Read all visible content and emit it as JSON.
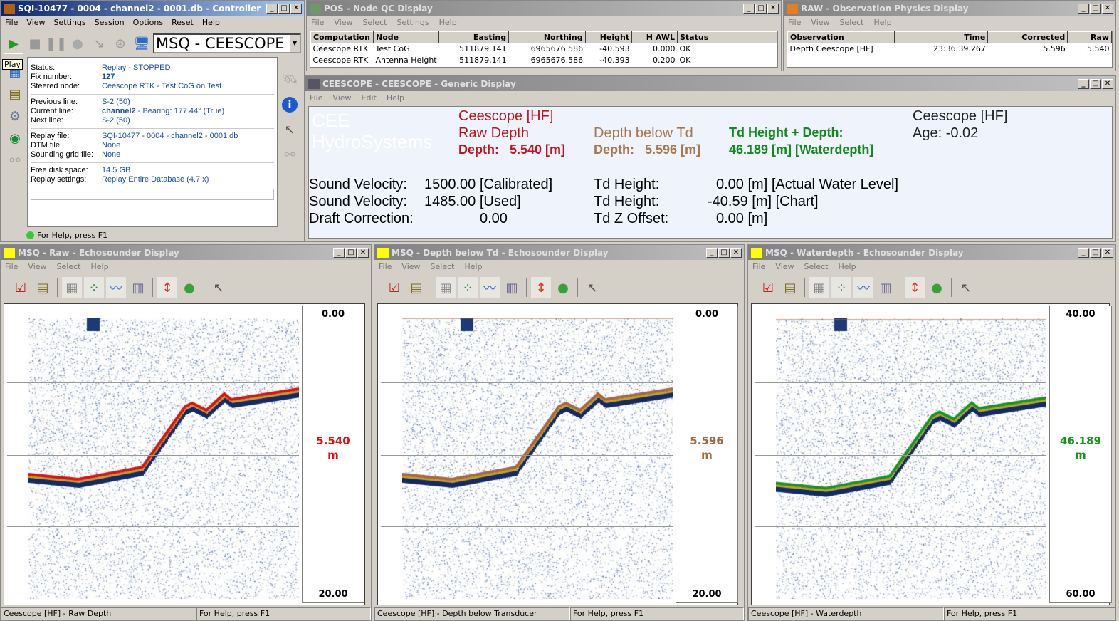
{
  "controller": {
    "title": "SQI-10477 - 0004 - channel2 - 0001.db - Controller",
    "menu": [
      "File",
      "View",
      "Settings",
      "Session",
      "Options",
      "Reset",
      "Help"
    ],
    "profile_select": "MSQ - CEESCOPE",
    "tooltip": "Play",
    "info": [
      [
        {
          "label": "Status:",
          "value": "Replay - STOPPED"
        },
        {
          "label": "Fix number:",
          "value": "127",
          "bold": true
        },
        {
          "label": "Steered node:",
          "value": "Ceescope RTK - Test CoG on Test"
        }
      ],
      [
        {
          "label": "Previous line:",
          "value": "S-2 (50)"
        },
        {
          "label": "Current line:",
          "value_bold": "channel2",
          "value": " - Bearing: 177.44° (True)"
        },
        {
          "label": "Next line:",
          "value": "S-2 (50)"
        }
      ],
      [
        {
          "label": "Replay file:",
          "value": "SQI-10477 - 0004 - channel2 - 0001.db"
        },
        {
          "label": "DTM file:",
          "value": "None"
        },
        {
          "label": "Sounding grid file:",
          "value": "None"
        }
      ],
      [
        {
          "label": "Free disk space:",
          "value": "14.5 GB"
        },
        {
          "label": "Replay settings:",
          "value": "Replay Entire Database (4.7 x)"
        }
      ]
    ],
    "status": "For Help, press F1"
  },
  "pos": {
    "title": "POS - Node QC Display",
    "menu": [
      "File",
      "View",
      "Select",
      "Settings",
      "Help"
    ],
    "columns": [
      "Computation",
      "Node",
      "Easting",
      "Northing",
      "Height",
      "H AWL",
      "Status"
    ],
    "rows": [
      [
        "Ceescope RTK",
        "Test CoG",
        "511879.141",
        "6965676.586",
        "-40.593",
        "0.000",
        "OK"
      ],
      [
        "Ceescope RTK",
        "Antenna Height",
        "511879.141",
        "6965676.586",
        "-40.393",
        "0.200",
        "OK"
      ]
    ]
  },
  "raw_obs": {
    "title": "RAW - Observation Physics Display",
    "menu": [
      "File",
      "View",
      "Select",
      "Help"
    ],
    "columns": [
      "Observation",
      "Time",
      "Corrected",
      "Raw"
    ],
    "rows": [
      [
        "Depth Ceescope [HF]",
        "23:36:39.267",
        "5.596",
        "5.540"
      ]
    ]
  },
  "generic": {
    "title": "CEESCOPE - CEESCOPE  - Generic Display",
    "menu": [
      "File",
      "View",
      "Edit",
      "Help"
    ],
    "logo": "CEE HydroSystems",
    "col1": [
      "Ceescope [HF]",
      "Raw Depth",
      "Depth:   5.540 [m]"
    ],
    "col2": [
      "Depth below Td",
      "Depth:   5.596 [m]"
    ],
    "col3": [
      "Td Height + Depth:",
      "46.189 [m] [Waterdepth]"
    ],
    "col4": [
      "Ceescope [HF]",
      "Age: -0.02"
    ],
    "rows": [
      [
        "Sound Velocity:",
        "1500.00 [Calibrated]",
        "Td Height:",
        "0.00 [m] [Actual Water Level]"
      ],
      [
        "Sound Velocity:",
        "1485.00 [Used]",
        "Td Height:",
        "-40.59 [m] [Chart]"
      ],
      [
        "Draft Correction:",
        "0.00",
        "Td Z Offset:",
        "0.00 [m]"
      ]
    ],
    "colors": {
      "raw": "#c0141c",
      "below": "#a8784c",
      "water": "#138a1c"
    }
  },
  "echo": [
    {
      "title": "MSQ - Raw - Echosounder Display",
      "menu": [
        "File",
        "View",
        "Select",
        "Help"
      ],
      "scale_top": "0.00",
      "scale_bottom": "20.00",
      "value": "5.540",
      "unit": "m",
      "color": "#dd1111",
      "status_left": "Ceescope [HF] - Raw Depth",
      "status_right": "For Help, press F1"
    },
    {
      "title": "MSQ - Depth below Td - Echosounder Display",
      "menu": [
        "File",
        "View",
        "Select",
        "Help"
      ],
      "scale_top": "0.00",
      "scale_bottom": "20.00",
      "value": "5.596",
      "unit": "m",
      "color": "#a8683c",
      "status_left": "Ceescope [HF] - Depth below Transducer",
      "status_right": "For Help, press F1"
    },
    {
      "title": "MSQ - Waterdepth - Echosounder Display",
      "menu": [
        "File",
        "View",
        "Select",
        "Help"
      ],
      "scale_top": "40.00",
      "scale_bottom": "60.00",
      "value": "46.189",
      "unit": "m",
      "color": "#18961c",
      "status_left": "Ceescope [HF] - Waterdepth",
      "status_right": "For Help, press F1"
    }
  ]
}
